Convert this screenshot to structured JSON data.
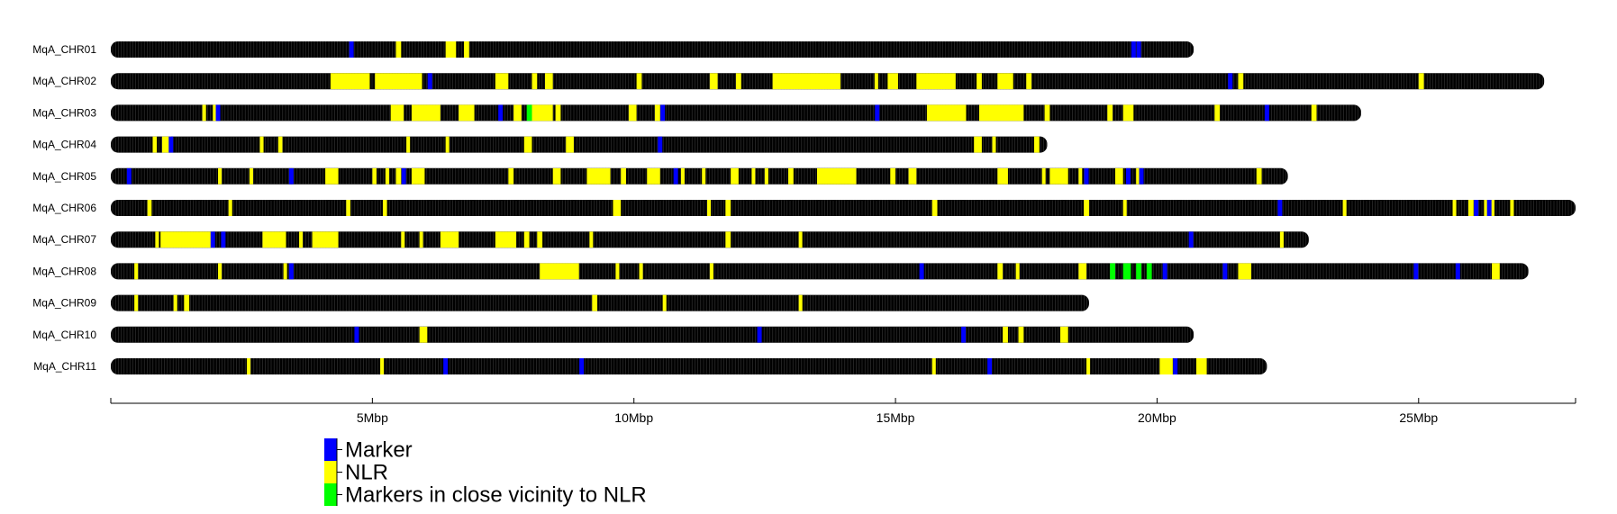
{
  "chart_data": {
    "type": "ideogram",
    "title": "",
    "xlabel": "",
    "ylabel": "",
    "x_unit": "Mbp",
    "xlim": [
      0,
      28
    ],
    "x_ticks": [
      0,
      5,
      10,
      15,
      20,
      25,
      28
    ],
    "x_tick_labels": [
      "",
      "5Mbp",
      "10Mbp",
      "15Mbp",
      "20Mbp",
      "25Mbp",
      ""
    ],
    "colors": {
      "chromosome": "#000000",
      "band": "#3a3a3a",
      "Marker": "#0000ff",
      "NLR": "#ffff00",
      "Markers in close vicinity to NLR": "#00ff00"
    },
    "legend": {
      "placement": "bottom-left",
      "entries": [
        {
          "label": "Marker",
          "color": "#0000ff"
        },
        {
          "label": "NLR",
          "color": "#ffff00"
        },
        {
          "label": "Markers in close vicinity to NLR",
          "color": "#00ff00"
        }
      ]
    },
    "chromosomes": [
      {
        "name": "MqA_CHR01",
        "length": 20.7,
        "nlr": [
          [
            5.45,
            5.55
          ],
          [
            6.4,
            6.6
          ],
          [
            6.75,
            6.85
          ]
        ],
        "markers": [
          4.6,
          19.55,
          19.65
        ],
        "close": []
      },
      {
        "name": "MqA_CHR02",
        "length": 27.4,
        "nlr": [
          [
            4.2,
            4.95
          ],
          [
            5.05,
            5.95
          ],
          [
            7.35,
            7.6
          ],
          [
            8.05,
            8.15
          ],
          [
            8.3,
            8.45
          ],
          [
            10.05,
            10.15
          ],
          [
            11.45,
            11.6
          ],
          [
            11.95,
            12.05
          ],
          [
            12.65,
            13.95
          ],
          [
            14.6,
            14.65
          ],
          [
            14.85,
            15.05
          ],
          [
            15.4,
            16.15
          ],
          [
            16.55,
            16.65
          ],
          [
            16.95,
            17.25
          ],
          [
            17.5,
            17.6
          ],
          [
            21.55,
            21.65
          ],
          [
            25.0,
            25.1
          ]
        ],
        "markers": [
          6.1,
          21.4
        ],
        "close": []
      },
      {
        "name": "MqA_CHR03",
        "length": 23.9,
        "nlr": [
          [
            1.75,
            1.82
          ],
          [
            1.95,
            2.02
          ],
          [
            5.35,
            5.6
          ],
          [
            5.75,
            6.3
          ],
          [
            6.65,
            6.95
          ],
          [
            7.7,
            7.85
          ],
          [
            8.05,
            8.45
          ],
          [
            8.5,
            8.6
          ],
          [
            9.9,
            10.05
          ],
          [
            10.4,
            10.5
          ],
          [
            15.6,
            16.35
          ],
          [
            16.6,
            17.45
          ],
          [
            17.85,
            17.95
          ],
          [
            19.05,
            19.15
          ],
          [
            19.35,
            19.55
          ],
          [
            21.1,
            21.2
          ],
          [
            22.95,
            23.05
          ]
        ],
        "markers": [
          2.05,
          7.45,
          10.55,
          14.65,
          22.1
        ],
        "close": [
          [
            7.95,
            8.05
          ]
        ]
      },
      {
        "name": "MqA_CHR04",
        "length": 17.9,
        "nlr": [
          [
            0.8,
            0.88
          ],
          [
            0.98,
            1.15
          ],
          [
            2.85,
            2.92
          ],
          [
            3.2,
            3.28
          ],
          [
            5.65,
            5.72
          ],
          [
            6.4,
            6.45
          ],
          [
            7.9,
            8.05
          ],
          [
            8.7,
            8.85
          ],
          [
            16.5,
            16.65
          ],
          [
            16.85,
            16.9
          ],
          [
            17.65,
            17.75
          ]
        ],
        "markers": [
          1.15,
          10.5
        ],
        "close": []
      },
      {
        "name": "MqA_CHR05",
        "length": 22.5,
        "nlr": [
          [
            2.05,
            2.12
          ],
          [
            2.65,
            2.72
          ],
          [
            4.1,
            4.35
          ],
          [
            5.0,
            5.08
          ],
          [
            5.25,
            5.32
          ],
          [
            5.45,
            5.55
          ],
          [
            5.75,
            6.0
          ],
          [
            7.6,
            7.7
          ],
          [
            8.45,
            8.6
          ],
          [
            9.1,
            9.55
          ],
          [
            9.75,
            9.85
          ],
          [
            10.25,
            10.5
          ],
          [
            10.9,
            10.95
          ],
          [
            11.3,
            11.35
          ],
          [
            11.85,
            12.0
          ],
          [
            12.25,
            12.3
          ],
          [
            12.5,
            12.55
          ],
          [
            12.95,
            13.05
          ],
          [
            13.5,
            14.25
          ],
          [
            14.9,
            15.0
          ],
          [
            15.25,
            15.4
          ],
          [
            16.95,
            17.15
          ],
          [
            17.8,
            17.85
          ],
          [
            17.95,
            18.3
          ],
          [
            18.5,
            18.55
          ],
          [
            19.2,
            19.35
          ],
          [
            19.6,
            19.65
          ],
          [
            21.9,
            22.0
          ]
        ],
        "markers": [
          0.35,
          3.45,
          5.6,
          10.8,
          18.65,
          19.45,
          19.7
        ],
        "close": []
      },
      {
        "name": "MqA_CHR06",
        "length": 28.0,
        "nlr": [
          [
            0.7,
            0.78
          ],
          [
            2.25,
            2.32
          ],
          [
            4.5,
            4.58
          ],
          [
            5.2,
            5.28
          ],
          [
            9.6,
            9.75
          ],
          [
            11.4,
            11.47
          ],
          [
            11.75,
            11.85
          ],
          [
            15.7,
            15.8
          ],
          [
            18.6,
            18.7
          ],
          [
            19.35,
            19.42
          ],
          [
            23.55,
            23.62
          ],
          [
            25.65,
            25.72
          ],
          [
            25.95,
            26.05
          ],
          [
            26.25,
            26.45
          ],
          [
            26.75,
            26.82
          ]
        ],
        "markers": [
          22.35,
          26.1,
          26.35
        ],
        "close": []
      },
      {
        "name": "MqA_CHR07",
        "length": 22.9,
        "nlr": [
          [
            0.85,
            0.92
          ],
          [
            0.95,
            1.95
          ],
          [
            2.9,
            3.35
          ],
          [
            3.6,
            3.65
          ],
          [
            3.85,
            4.35
          ],
          [
            5.55,
            5.6
          ],
          [
            5.9,
            5.95
          ],
          [
            6.3,
            6.65
          ],
          [
            7.35,
            7.75
          ],
          [
            7.9,
            8.0
          ],
          [
            8.15,
            8.25
          ],
          [
            9.15,
            9.2
          ],
          [
            11.75,
            11.85
          ],
          [
            13.15,
            13.2
          ],
          [
            22.35,
            22.42
          ]
        ],
        "markers": [
          1.95,
          2.15,
          20.65
        ],
        "close": []
      },
      {
        "name": "MqA_CHR08",
        "length": 27.1,
        "nlr": [
          [
            0.45,
            0.52
          ],
          [
            2.05,
            2.12
          ],
          [
            3.3,
            3.35
          ],
          [
            8.2,
            8.95
          ],
          [
            9.65,
            9.72
          ],
          [
            10.1,
            10.17
          ],
          [
            11.45,
            11.52
          ],
          [
            16.95,
            17.05
          ],
          [
            17.3,
            17.37
          ],
          [
            18.5,
            18.65
          ],
          [
            21.55,
            21.8
          ],
          [
            26.4,
            26.55
          ]
        ],
        "markers": [
          3.45,
          15.5,
          20.15,
          21.3,
          24.95,
          25.75
        ],
        "close": [
          [
            19.1,
            19.2
          ],
          [
            19.35,
            19.5
          ],
          [
            19.6,
            19.7
          ],
          [
            19.8,
            19.9
          ]
        ]
      },
      {
        "name": "MqA_CHR09",
        "length": 18.7,
        "nlr": [
          [
            0.45,
            0.52
          ],
          [
            1.2,
            1.27
          ],
          [
            1.4,
            1.5
          ],
          [
            9.2,
            9.3
          ],
          [
            10.55,
            10.62
          ],
          [
            13.15,
            13.22
          ]
        ],
        "markers": [],
        "close": []
      },
      {
        "name": "MqA_CHR10",
        "length": 20.7,
        "nlr": [
          [
            5.9,
            6.05
          ],
          [
            17.05,
            17.15
          ],
          [
            17.35,
            17.45
          ],
          [
            18.15,
            18.3
          ]
        ],
        "markers": [
          4.7,
          12.4,
          16.3
        ],
        "close": []
      },
      {
        "name": "MqA_CHR11",
        "length": 22.1,
        "nlr": [
          [
            2.6,
            2.67
          ],
          [
            5.15,
            5.22
          ],
          [
            15.7,
            15.77
          ],
          [
            18.65,
            18.72
          ],
          [
            20.05,
            20.3
          ],
          [
            20.75,
            20.95
          ]
        ],
        "markers": [
          6.4,
          9.0,
          16.8,
          20.35
        ],
        "close": []
      }
    ]
  }
}
